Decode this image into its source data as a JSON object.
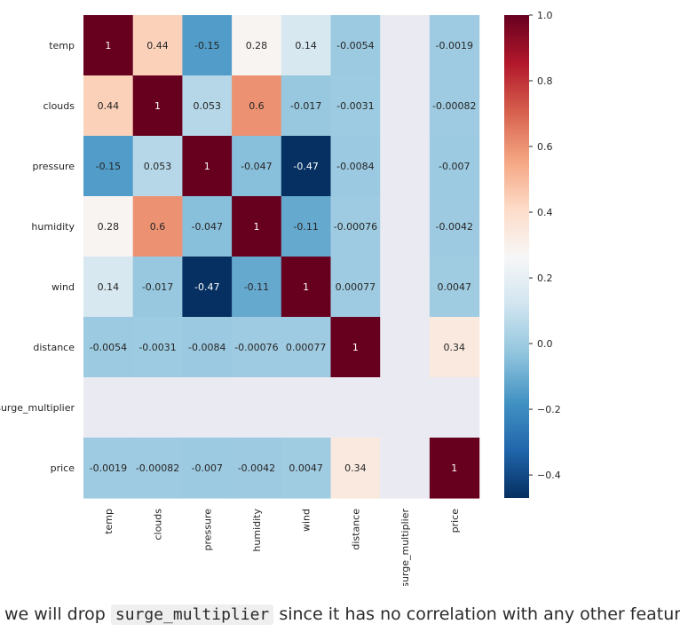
{
  "chart_data": {
    "type": "heatmap",
    "variables": [
      "temp",
      "clouds",
      "pressure",
      "humidity",
      "wind",
      "distance",
      "surge_multiplier",
      "price"
    ],
    "matrix": [
      [
        1,
        0.44,
        -0.15,
        0.28,
        0.14,
        -0.0054,
        null,
        -0.0019
      ],
      [
        0.44,
        1,
        0.053,
        0.6,
        -0.017,
        -0.0031,
        null,
        -0.00082
      ],
      [
        -0.15,
        0.053,
        1,
        -0.047,
        -0.47,
        -0.0084,
        null,
        -0.007
      ],
      [
        0.28,
        0.6,
        -0.047,
        1,
        -0.11,
        -0.00076,
        null,
        -0.0042
      ],
      [
        0.14,
        -0.017,
        -0.47,
        -0.11,
        1,
        0.00077,
        null,
        0.0047
      ],
      [
        -0.0054,
        -0.0031,
        -0.0084,
        -0.00076,
        0.00077,
        1,
        null,
        0.34
      ],
      [
        null,
        null,
        null,
        null,
        null,
        null,
        null,
        null
      ],
      [
        -0.0019,
        -0.00082,
        -0.007,
        -0.0042,
        0.0047,
        0.34,
        null,
        1
      ]
    ],
    "annotations": [
      [
        "1",
        "0.44",
        "-0.15",
        "0.28",
        "0.14",
        "-0.0054",
        "",
        "-0.0019"
      ],
      [
        "0.44",
        "1",
        "0.053",
        "0.6",
        "-0.017",
        "-0.0031",
        "",
        "-0.00082"
      ],
      [
        "-0.15",
        "0.053",
        "1",
        "-0.047",
        "-0.47",
        "-0.0084",
        "",
        "-0.007"
      ],
      [
        "0.28",
        "0.6",
        "-0.047",
        "1",
        "-0.11",
        "-0.00076",
        "",
        "-0.0042"
      ],
      [
        "0.14",
        "-0.017",
        "-0.47",
        "-0.11",
        "1",
        "0.00077",
        "",
        "0.0047"
      ],
      [
        "-0.0054",
        "-0.0031",
        "-0.0084",
        "-0.00076",
        "0.00077",
        "1",
        "",
        "0.34"
      ],
      [
        "",
        "",
        "",
        "",
        "",
        "",
        "",
        ""
      ],
      [
        "-0.0019",
        "-0.00082",
        "-0.007",
        "-0.0042",
        "0.0047",
        "0.34",
        "",
        "1"
      ]
    ],
    "colormap": "RdBu_r",
    "vmin": -0.47,
    "vmax": 1.0,
    "nan_color": "#eaeaf2",
    "colorbar_ticks": [
      1.0,
      0.8,
      0.6,
      0.4,
      0.2,
      0.0,
      -0.2,
      -0.4
    ],
    "colorbar_tick_labels": [
      "1.0",
      "0.8",
      "0.6",
      "0.4",
      "0.2",
      "0.0",
      "−0.2",
      "−0.4"
    ],
    "colorbar_position": "right"
  },
  "caption": {
    "before": "we will drop",
    "code": "surge_multiplier",
    "after": "since it has no correlation with any other feature"
  }
}
